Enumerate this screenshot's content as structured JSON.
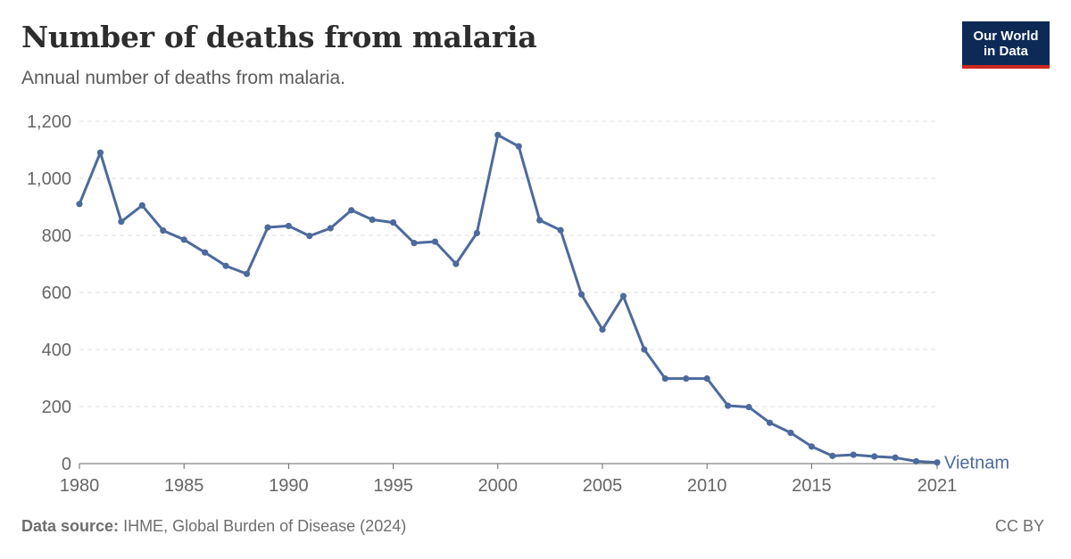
{
  "header": {
    "title": "Number of deaths from malaria",
    "subtitle": "Annual number of deaths from malaria."
  },
  "logo": {
    "line1": "Our World",
    "line2": "in Data"
  },
  "footer": {
    "source_label": "Data source:",
    "source_text": "IHME, Global Burden of Disease (2024)",
    "license": "CC BY"
  },
  "colors": {
    "line": "#4c6a9c",
    "grid": "#dddddd",
    "axis": "#666666",
    "logo_bg": "#0c2a55",
    "logo_bar": "#ce261e"
  },
  "chart_data": {
    "type": "line",
    "title": "Number of deaths from malaria",
    "subtitle": "Annual number of deaths from malaria.",
    "xlabel": "",
    "ylabel": "",
    "xlim": [
      1980,
      2021
    ],
    "ylim": [
      0,
      1200
    ],
    "yticks": [
      0,
      200,
      400,
      600,
      800,
      1000,
      1200
    ],
    "ytick_labels": [
      "0",
      "200",
      "400",
      "600",
      "800",
      "1,000",
      "1,200"
    ],
    "xticks": [
      1980,
      1985,
      1990,
      1995,
      2000,
      2005,
      2010,
      2015,
      2021
    ],
    "xtick_labels": [
      "1980",
      "1985",
      "1990",
      "1995",
      "2000",
      "2005",
      "2010",
      "2015",
      "2021"
    ],
    "grid": true,
    "legend": "end-of-line label",
    "x": [
      1980,
      1981,
      1982,
      1983,
      1984,
      1985,
      1986,
      1987,
      1988,
      1989,
      1990,
      1991,
      1992,
      1993,
      1994,
      1995,
      1996,
      1997,
      1998,
      1999,
      2000,
      2001,
      2002,
      2003,
      2004,
      2005,
      2006,
      2007,
      2008,
      2009,
      2010,
      2011,
      2012,
      2013,
      2014,
      2015,
      2016,
      2017,
      2018,
      2019,
      2020,
      2021
    ],
    "series": [
      {
        "name": "Vietnam",
        "values": [
          910,
          1090,
          848,
          905,
          817,
          785,
          740,
          693,
          665,
          828,
          833,
          798,
          825,
          888,
          855,
          845,
          773,
          778,
          700,
          808,
          1152,
          1112,
          853,
          818,
          593,
          470,
          587,
          400,
          298,
          298,
          298,
          203,
          198,
          143,
          108,
          60,
          27,
          31,
          25,
          21,
          8,
          4
        ]
      }
    ]
  }
}
